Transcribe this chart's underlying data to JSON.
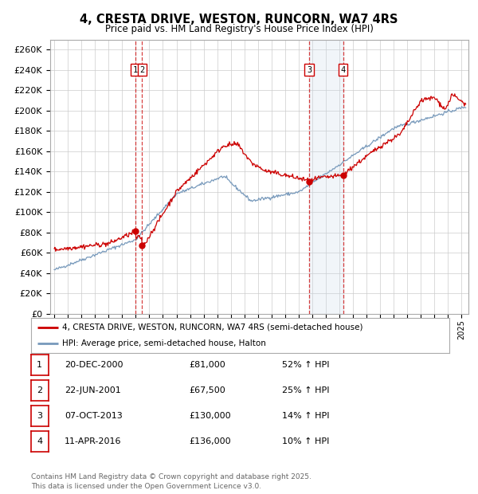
{
  "title": "4, CRESTA DRIVE, WESTON, RUNCORN, WA7 4RS",
  "subtitle": "Price paid vs. HM Land Registry's House Price Index (HPI)",
  "ylim": [
    0,
    270000
  ],
  "yticks": [
    0,
    20000,
    40000,
    60000,
    80000,
    100000,
    120000,
    140000,
    160000,
    180000,
    200000,
    220000,
    240000,
    260000
  ],
  "xlim_start": 1994.7,
  "xlim_end": 2025.5,
  "bg_color": "#ffffff",
  "plot_bg": "#ffffff",
  "grid_color": "#cccccc",
  "red_line_color": "#cc0000",
  "blue_line_color": "#7799bb",
  "shade_color": "#c8d8e8",
  "transactions": [
    {
      "num": 1,
      "date_num": 2000.97,
      "price": 81000,
      "label": "1",
      "hpi_pct": "52% ↑ HPI",
      "date_str": "20-DEC-2000",
      "price_str": "£81,000"
    },
    {
      "num": 2,
      "date_num": 2001.47,
      "price": 67500,
      "label": "2",
      "hpi_pct": "25% ↑ HPI",
      "date_str": "22-JUN-2001",
      "price_str": "£67,500"
    },
    {
      "num": 3,
      "date_num": 2013.77,
      "price": 130000,
      "label": "3",
      "hpi_pct": "14% ↑ HPI",
      "date_str": "07-OCT-2013",
      "price_str": "£130,000"
    },
    {
      "num": 4,
      "date_num": 2016.27,
      "price": 136000,
      "label": "4",
      "hpi_pct": "10% ↑ HPI",
      "date_str": "11-APR-2016",
      "price_str": "£136,000"
    }
  ],
  "legend_label_red": "4, CRESTA DRIVE, WESTON, RUNCORN, WA7 4RS (semi-detached house)",
  "legend_label_blue": "HPI: Average price, semi-detached house, Halton",
  "footnote": "Contains HM Land Registry data © Crown copyright and database right 2025.\nThis data is licensed under the Open Government Licence v3.0."
}
